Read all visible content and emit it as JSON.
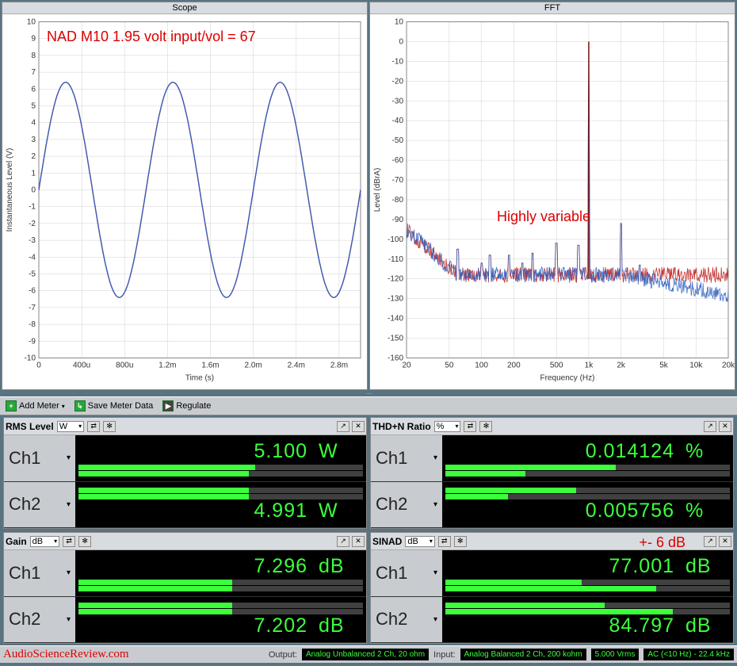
{
  "scope": {
    "title": "Scope",
    "overlay": "NAD M10 1.95 volt input/vol = 67",
    "xlabel": "Time (s)",
    "ylabel": "Instantaneous Level (V)",
    "xlim": [
      0,
      0.003
    ],
    "ylim": [
      -10,
      10
    ],
    "xticks": [
      "0",
      "400u",
      "800u",
      "1.2m",
      "1.6m",
      "2.0m",
      "2.4m",
      "2.8m"
    ],
    "yticks": [
      -10,
      -9,
      -8,
      -7,
      -6,
      -5,
      -4,
      -3,
      -2,
      -1,
      0,
      1,
      2,
      3,
      4,
      5,
      6,
      7,
      8,
      9,
      10
    ],
    "grid_color": "#d0d0d0",
    "series": [
      {
        "color": "#c02020",
        "amplitude": 6.4,
        "freq": 1000
      },
      {
        "color": "#3060c0",
        "amplitude": 6.4,
        "freq": 1000
      }
    ],
    "background": "#ffffff",
    "label_fontsize": 10
  },
  "fft": {
    "title": "FFT",
    "overlay": "Highly variable",
    "xlabel": "Frequency (Hz)",
    "ylabel": "Level (dBrA)",
    "xlim": [
      20,
      20000
    ],
    "ylim": [
      -160,
      10
    ],
    "xticks": [
      "20",
      "",
      "50",
      "",
      "100",
      "",
      "200",
      "",
      "500",
      "",
      "1k",
      "",
      "2k",
      "",
      "5k",
      "",
      "10k",
      "",
      "20k"
    ],
    "xtick_vals": [
      20,
      50,
      100,
      200,
      500,
      1000,
      2000,
      5000,
      10000,
      20000
    ],
    "yticks": [
      -160,
      -150,
      -140,
      -130,
      -120,
      -110,
      -100,
      -90,
      -80,
      -70,
      -60,
      -50,
      -40,
      -30,
      -20,
      -10,
      0,
      10
    ],
    "grid_color": "#d0d0d0",
    "scale_x": "log",
    "series_colors": [
      "#c02020",
      "#3060c0"
    ],
    "fundamental_hz": 1000,
    "fundamental_db": 0,
    "noise_floor_db": -118,
    "noise_jitter_db": 8,
    "lowfreq_rise_db": -95,
    "harmonics": [
      {
        "hz": 60,
        "db": -105
      },
      {
        "hz": 100,
        "db": -112
      },
      {
        "hz": 120,
        "db": -108
      },
      {
        "hz": 180,
        "db": -108
      },
      {
        "hz": 240,
        "db": -112
      },
      {
        "hz": 300,
        "db": -107
      },
      {
        "hz": 500,
        "db": -102
      },
      {
        "hz": 800,
        "db": -103
      },
      {
        "hz": 2000,
        "db": -92
      },
      {
        "hz": 3000,
        "db": -113
      }
    ],
    "background": "#ffffff"
  },
  "toolbar": {
    "add_meter": "Add Meter",
    "save_meter": "Save Meter Data",
    "regulate": "Regulate"
  },
  "meters": {
    "rms": {
      "title": "RMS Level",
      "unit_sel": "W",
      "ch1": {
        "label": "Ch1",
        "value": "5.100",
        "unit": "W",
        "bars": [
          62,
          60
        ]
      },
      "ch2": {
        "label": "Ch2",
        "value": "4.991",
        "unit": "W",
        "bars": [
          60,
          60
        ]
      }
    },
    "thdn": {
      "title": "THD+N Ratio",
      "unit_sel": "%",
      "ch1": {
        "label": "Ch1",
        "value": "0.014124",
        "unit": "%",
        "bars": [
          60,
          28
        ]
      },
      "ch2": {
        "label": "Ch2",
        "value": "0.005756",
        "unit": "%",
        "bars": [
          46,
          22
        ]
      }
    },
    "gain": {
      "title": "Gain",
      "unit_sel": "dB",
      "ch1": {
        "label": "Ch1",
        "value": "7.296",
        "unit": "dB",
        "bars": [
          54,
          54
        ]
      },
      "ch2": {
        "label": "Ch2",
        "value": "7.202",
        "unit": "dB",
        "bars": [
          54,
          54
        ]
      }
    },
    "sinad": {
      "title": "SINAD",
      "unit_sel": "dB",
      "overlay": "+- 6 dB",
      "ch1": {
        "label": "Ch1",
        "value": "77.001",
        "unit": "dB",
        "bars": [
          48,
          74
        ]
      },
      "ch2": {
        "label": "Ch2",
        "value": "84.797",
        "unit": "dB",
        "bars": [
          56,
          80
        ]
      }
    }
  },
  "status": {
    "watermark": "AudioScienceReview.com",
    "output_label": "Output:",
    "output_val": "Analog Unbalanced 2 Ch, 20 ohm",
    "input_label": "Input:",
    "input_val": "Analog Balanced 2 Ch, 200 kohm",
    "vrms": "5.000 Vrms",
    "bw": "AC (<10 Hz) - 22.4 kHz"
  },
  "colors": {
    "panel_bg": "#5a7380",
    "meter_green": "#3cff3c",
    "red_overlay": "#d00000"
  }
}
